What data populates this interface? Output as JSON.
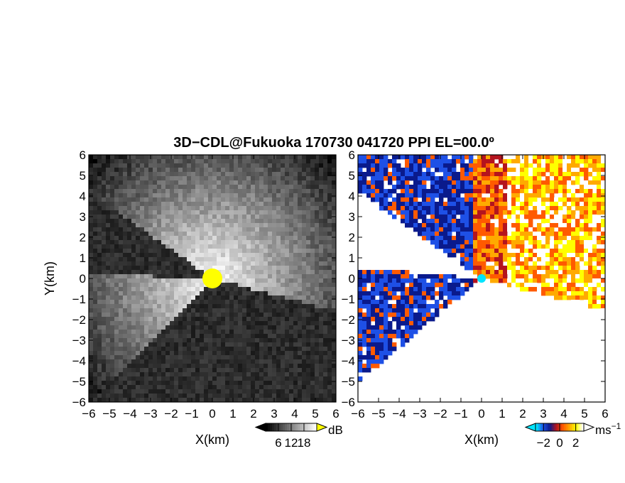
{
  "title": "3D−CDL@Fukuoka 170730 041720 PPI EL=00.0º",
  "chart_data": [
    {
      "type": "heatmap",
      "panel": "left",
      "quantity": "dB",
      "xlabel": "X(km)",
      "ylabel": "Y(km)",
      "xlim": [
        -6,
        6
      ],
      "ylim": [
        -6,
        6
      ],
      "x_ticks": [
        "−6",
        "−5",
        "−4",
        "−3",
        "−2",
        "−1",
        "0",
        "1",
        "2",
        "3",
        "4",
        "5",
        "6"
      ],
      "y_ticks": [
        "−6",
        "−5",
        "−4",
        "−3",
        "−2",
        "−1",
        "0",
        "1",
        "2",
        "3",
        "4",
        "5",
        "6"
      ],
      "colorbar": {
        "unit": "dB",
        "ticks": [
          "6",
          "12",
          "18"
        ],
        "tick_values": [
          6,
          12,
          18
        ],
        "range": [
          0,
          24
        ],
        "colors": [
          "#000000",
          "#ffffff"
        ],
        "over_color": "#ffff00"
      }
    },
    {
      "type": "heatmap",
      "panel": "right",
      "quantity": "radial velocity",
      "xlabel": "X(km)",
      "ylabel": "",
      "xlim": [
        -6,
        6
      ],
      "ylim": [
        -6,
        6
      ],
      "x_ticks": [
        "−6",
        "−5",
        "−4",
        "−3",
        "−2",
        "−1",
        "0",
        "1",
        "2",
        "3",
        "4",
        "5",
        "6"
      ],
      "y_ticks": [
        "−6",
        "−5",
        "−4",
        "−3",
        "−2",
        "−1",
        "0",
        "1",
        "2",
        "3",
        "4",
        "5",
        "6"
      ],
      "colorbar": {
        "unit": "ms",
        "unit_exponent": "−1",
        "ticks": [
          "−2",
          "0",
          "2"
        ],
        "tick_values": [
          -2,
          0,
          2
        ],
        "range": [
          -3,
          3
        ],
        "colors": [
          "#00e5ff",
          "#1e50e6",
          "#0a1a8c",
          "#b4141e",
          "#ff5a00",
          "#ffaa00",
          "#ffff00",
          "#ffffff"
        ]
      }
    }
  ]
}
